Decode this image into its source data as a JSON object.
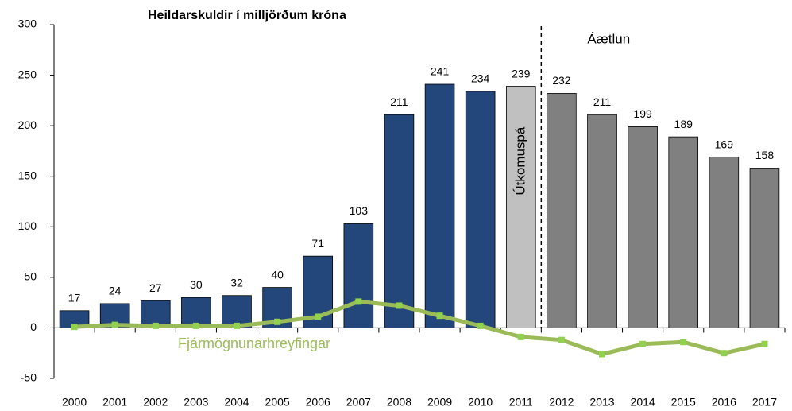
{
  "chart_data": {
    "type": "bar",
    "title": "Heildarskuldir í milljörðum króna",
    "categories": [
      "2000",
      "2001",
      "2002",
      "2003",
      "2004",
      "2005",
      "2006",
      "2007",
      "2008",
      "2009",
      "2010",
      "2011",
      "2012",
      "2013",
      "2014",
      "2015",
      "2016",
      "2017"
    ],
    "series": [
      {
        "type": "bar",
        "colors": [
          "#23477a",
          "#23477a",
          "#23477a",
          "#23477a",
          "#23477a",
          "#23477a",
          "#23477a",
          "#23477a",
          "#23477a",
          "#23477a",
          "#23477a",
          "#c0c0c0",
          "#808080",
          "#808080",
          "#808080",
          "#808080",
          "#808080",
          "#808080"
        ],
        "values": [
          17,
          24,
          27,
          30,
          32,
          40,
          71,
          103,
          211,
          241,
          234,
          239,
          232,
          211,
          199,
          189,
          169,
          158
        ]
      },
      {
        "type": "line",
        "name": "Fjármögnunarhreyfingar",
        "color": "#9bbb59",
        "marker_color": "#92d050",
        "values": [
          1,
          3,
          2,
          2,
          2,
          6,
          11,
          26,
          22,
          12,
          2,
          -9,
          -12,
          -26,
          -16,
          -14,
          -25,
          -16
        ]
      }
    ],
    "annotations": [
      "Útkomuspá",
      "Áætlun"
    ],
    "ylim": [
      -50,
      300
    ],
    "yticks": [
      -50,
      0,
      50,
      100,
      150,
      200,
      250,
      300
    ],
    "grid": false
  }
}
